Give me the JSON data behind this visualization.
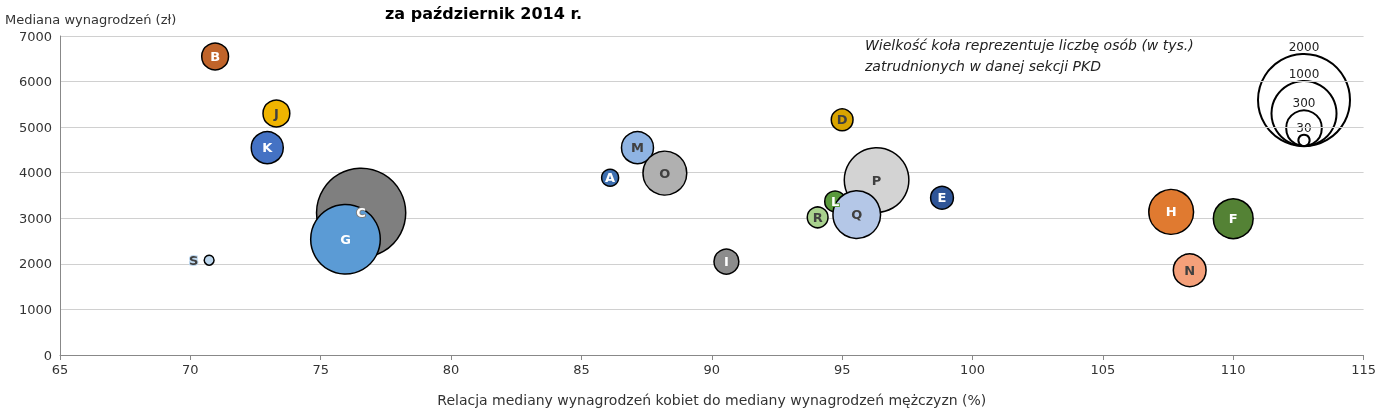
{
  "chart_data": {
    "type": "bubble",
    "title": "za październik 2014 r.",
    "xlabel": "Relacja mediany wynagrodzeń kobiet do mediany wynagrodzeń mężczyzn (%)",
    "ylabel": "Mediana wynagrodzeń (zł)",
    "annotations": [
      "Wielkość koła reprezentuje liczbę osób (w tys.) zatrudnionych w danej sekcji PKD"
    ],
    "xlim": [
      65,
      115
    ],
    "xticks": [
      65,
      70,
      75,
      80,
      85,
      90,
      95,
      100,
      105,
      110,
      115
    ],
    "ylim": [
      0,
      7000
    ],
    "yticks": [
      0,
      1000,
      2000,
      3000,
      4000,
      5000,
      6000,
      7000
    ],
    "grid": "y",
    "legend": false,
    "marker": "circle",
    "size_legend": [
      30,
      300,
      1000,
      2000
    ],
    "series": [
      {
        "name": "A",
        "color": "#3d6fb0",
        "x": [
          86.1
        ],
        "values": [
          3890
        ],
        "sizes": [
          68
        ]
      },
      {
        "name": "B",
        "color": "#c0642a",
        "x": [
          70.95
        ],
        "values": [
          6550
        ],
        "sizes": [
          170
        ]
      },
      {
        "name": "C",
        "color": "#7f7f7f",
        "x": [
          76.55
        ],
        "values": [
          3120
        ],
        "sizes": [
          1880
        ]
      },
      {
        "name": "D",
        "color": "#d9a400",
        "x": [
          95.0
        ],
        "values": [
          5160
        ],
        "sizes": [
          112
        ]
      },
      {
        "name": "E",
        "color": "#2f5597",
        "x": [
          98.83
        ],
        "values": [
          3450
        ],
        "sizes": [
          123
        ]
      },
      {
        "name": "F",
        "color": "#548235",
        "x": [
          110.0
        ],
        "values": [
          2990
        ],
        "sizes": [
          374
        ]
      },
      {
        "name": "G",
        "color": "#5b9bd5",
        "x": [
          75.95
        ],
        "values": [
          2540
        ],
        "sizes": [
          1145
        ]
      },
      {
        "name": "H",
        "color": "#e07a30",
        "x": [
          107.62
        ],
        "values": [
          3140
        ],
        "sizes": [
          474
        ]
      },
      {
        "name": "I",
        "color": "#8c8c8c",
        "x": [
          90.56
        ],
        "values": [
          2050
        ],
        "sizes": [
          146
        ]
      },
      {
        "name": "J",
        "color": "#f0b400",
        "x": [
          73.3
        ],
        "values": [
          5300
        ],
        "sizes": [
          170
        ]
      },
      {
        "name": "K",
        "color": "#4472c4",
        "x": [
          72.95
        ],
        "values": [
          4550
        ],
        "sizes": [
          242
        ]
      },
      {
        "name": "L",
        "color": "#5a9a3c",
        "x": [
          94.73
        ],
        "values": [
          3370
        ],
        "sizes": [
          102
        ]
      },
      {
        "name": "M",
        "color": "#8fb4e3",
        "x": [
          87.15
        ],
        "values": [
          4550
        ],
        "sizes": [
          242
        ]
      },
      {
        "name": "N",
        "color": "#f4a07a",
        "x": [
          108.33
        ],
        "values": [
          1860
        ],
        "sizes": [
          254
        ]
      },
      {
        "name": "O",
        "color": "#b0b0b0",
        "x": [
          88.2
        ],
        "values": [
          3990
        ],
        "sizes": [
          453
        ]
      },
      {
        "name": "P",
        "color": "#d3d3d3",
        "x": [
          96.32
        ],
        "values": [
          3840
        ],
        "sizes": [
          986
        ]
      },
      {
        "name": "Q",
        "color": "#b4c7e7",
        "x": [
          95.56
        ],
        "values": [
          3080
        ],
        "sizes": [
          536
        ]
      },
      {
        "name": "R",
        "color": "#a9d18e",
        "x": [
          94.06
        ],
        "values": [
          3020
        ],
        "sizes": [
          102
        ]
      },
      {
        "name": "S",
        "color": "#bdd7ee",
        "x": [
          70.72
        ],
        "values": [
          2080
        ],
        "sizes": [
          23
        ]
      }
    ]
  }
}
